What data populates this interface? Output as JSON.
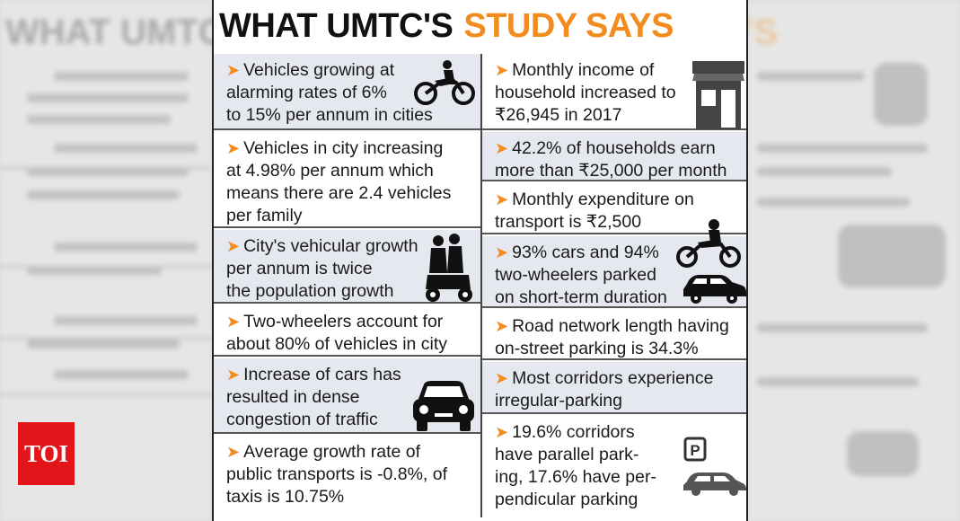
{
  "header": {
    "title_black": "WHAT UMTC'S",
    "title_orange": "STUDY SAYS"
  },
  "logo": {
    "text": "TOI"
  },
  "colors": {
    "accent": "#f28c1e",
    "logo_red": "#e3151a",
    "shade": "#e6e8f0"
  },
  "left_column": [
    {
      "text": "Vehicles growing at\nalarming rates of 6%\nto 15% per annum in cities",
      "icon": "motorcycle-icon"
    },
    {
      "text": "Vehicles in city increasing\nat 4.98% per annum which\nmeans there are 2.4 vehicles\nper family"
    },
    {
      "text": "City's vehicular growth\nper annum is twice\nthe population growth",
      "icon": "scooter-family-icon"
    },
    {
      "text": "Two-wheelers account for\nabout 80% of vehicles in city"
    },
    {
      "text": "Increase of cars has\nresulted in dense\n congestion of traffic",
      "icon": "car-front-icon"
    },
    {
      "text": "Average growth rate of\npublic transports is -0.8%, of\ntaxis is 10.75%"
    }
  ],
  "right_column": [
    {
      "text": "Monthly income of\nhousehold increased to\n₹26,945 in 2017",
      "icon": "house-icon"
    },
    {
      "text": "42.2% of households earn\nmore than ₹25,000 per month"
    },
    {
      "text": "Monthly expenditure on\ntransport is ₹2,500"
    },
    {
      "text": "93% cars and 94%\ntwo-wheelers parked\non short-term duration",
      "icon": "bike-and-car-icon"
    },
    {
      "text": "Road network length having\non-street parking is 34.3%"
    },
    {
      "text": "Most corridors experience\nirregular-parking"
    },
    {
      "text": "19.6% corridors\nhave parallel park-\ning, 17.6% have per-\npendicular parking",
      "icon": "parking-car-icon"
    }
  ]
}
